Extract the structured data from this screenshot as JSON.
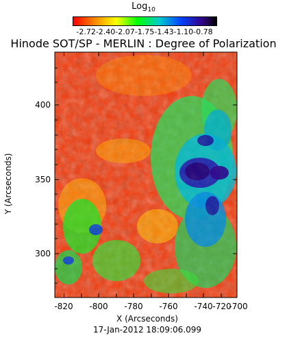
{
  "colorbar": {
    "label": "Log",
    "label_sub": "10",
    "ticks": "-2.72-2.40-2.07-1.75-1.43-1.10-0.78",
    "colors": [
      "#ff0000",
      "#ff8800",
      "#ffff00",
      "#00ff00",
      "#00cccc",
      "#0044ff",
      "#330088",
      "#000000"
    ]
  },
  "title": "Hinode SOT/SP - MERLIN : Degree of Polarization",
  "x_axis": {
    "label": "X (Arcseconds)",
    "ticks": [
      "-820",
      "-800",
      "-780",
      "-760",
      "-740",
      "-720",
      "-700"
    ]
  },
  "y_axis": {
    "label": "Y (Arcseconds)",
    "ticks": [
      "300",
      "350",
      "400"
    ]
  },
  "date": "17-Jan-2012 18:09:06.099"
}
